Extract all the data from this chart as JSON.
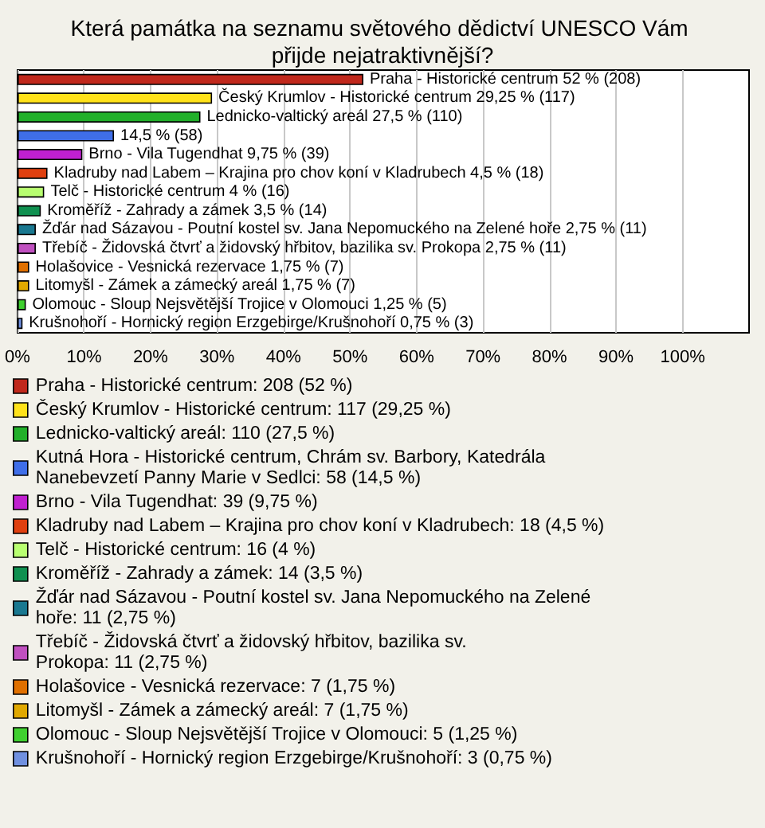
{
  "chart_data": {
    "type": "bar",
    "orientation": "horizontal",
    "title": "Která památka na seznamu světového dědictví UNESCO Vám přijde nejatraktivnější?",
    "categories": [
      null,
      null,
      null,
      null,
      null,
      null,
      null,
      null,
      null,
      null,
      null,
      null,
      null,
      null
    ],
    "series": [
      {
        "name": "Praha - Historické centrum: 208 (52 %)",
        "color": "#c0281c",
        "values": [
          52,
          null,
          null,
          null,
          null,
          null,
          null,
          null,
          null,
          null,
          null,
          null,
          null,
          null
        ],
        "value_labels": [
          "Praha - Historické centrum 52 % (208)",
          null,
          null,
          null,
          null,
          null,
          null,
          null,
          null,
          null,
          null,
          null,
          null,
          null
        ]
      },
      {
        "name": "Český Krumlov - Historické centrum: 117 (29,25 %)",
        "color": "#ffe21a",
        "values": [
          null,
          29.25,
          null,
          null,
          null,
          null,
          null,
          null,
          null,
          null,
          null,
          null,
          null,
          null
        ],
        "value_labels": [
          null,
          "Český Krumlov - Historické centrum 29,25 % (117)",
          null,
          null,
          null,
          null,
          null,
          null,
          null,
          null,
          null,
          null,
          null,
          null
        ]
      },
      {
        "name": "Lednicko-valtický areál: 110 (27,5 %)",
        "color": "#22b02a",
        "values": [
          null,
          null,
          27.5,
          null,
          null,
          null,
          null,
          null,
          null,
          null,
          null,
          null,
          null,
          null
        ],
        "value_labels": [
          null,
          null,
          "Lednicko-valtický areál 27,5 % (110)",
          null,
          null,
          null,
          null,
          null,
          null,
          null,
          null,
          null,
          null,
          null
        ]
      },
      {
        "name": "Kutná Hora - Historické centrum, Chrám sv. Barbory, Katedrála Nanebevzetí Panny Marie v Sedlci: 58 (14,5 %)",
        "color": "#3f6ee8",
        "values": [
          null,
          null,
          null,
          14.5,
          null,
          null,
          null,
          null,
          null,
          null,
          null,
          null,
          null,
          null
        ],
        "value_labels": [
          null,
          null,
          null,
          "14,5 % (58)",
          null,
          null,
          null,
          null,
          null,
          null,
          null,
          null,
          null,
          null
        ]
      },
      {
        "name": "Brno - Vila Tugendhat: 39 (9,75 %)",
        "color": "#c020d0",
        "values": [
          null,
          null,
          null,
          null,
          9.75,
          null,
          null,
          null,
          null,
          null,
          null,
          null,
          null,
          null
        ],
        "value_labels": [
          null,
          null,
          null,
          null,
          "Brno - Vila Tugendhat 9,75 % (39)",
          null,
          null,
          null,
          null,
          null,
          null,
          null,
          null,
          null
        ]
      },
      {
        "name": "Kladruby nad Labem – Krajina pro chov koní v Kladrubech: 18 (4,5 %)",
        "color": "#e04010",
        "values": [
          null,
          null,
          null,
          null,
          null,
          4.5,
          null,
          null,
          null,
          null,
          null,
          null,
          null,
          null
        ],
        "value_labels": [
          null,
          null,
          null,
          null,
          null,
          "Kladruby nad Labem – Krajina pro chov koní v Kladrubech 4,5 % (18)",
          null,
          null,
          null,
          null,
          null,
          null,
          null,
          null
        ]
      },
      {
        "name": "Telč - Historické centrum: 16 (4 %)",
        "color": "#b8ff70",
        "values": [
          null,
          null,
          null,
          null,
          null,
          null,
          4,
          null,
          null,
          null,
          null,
          null,
          null,
          null
        ],
        "value_labels": [
          null,
          null,
          null,
          null,
          null,
          null,
          "Telč - Historické centrum 4 % (16)",
          null,
          null,
          null,
          null,
          null,
          null,
          null
        ]
      },
      {
        "name": "Kroměříž - Zahrady a zámek: 14 (3,5 %)",
        "color": "#109050",
        "values": [
          null,
          null,
          null,
          null,
          null,
          null,
          null,
          3.5,
          null,
          null,
          null,
          null,
          null,
          null
        ],
        "value_labels": [
          null,
          null,
          null,
          null,
          null,
          null,
          null,
          "Kroměříž - Zahrady a zámek 3,5 % (14)",
          null,
          null,
          null,
          null,
          null,
          null
        ]
      },
      {
        "name": "Žďár nad Sázavou - Poutní kostel sv. Jana Nepomuckého na Zelené hoře: 11 (2,75 %)",
        "color": "#1a7890",
        "values": [
          null,
          null,
          null,
          null,
          null,
          null,
          null,
          null,
          2.75,
          null,
          null,
          null,
          null,
          null
        ],
        "value_labels": [
          null,
          null,
          null,
          null,
          null,
          null,
          null,
          null,
          "Žďár nad Sázavou - Poutní kostel sv. Jana Nepomuckého na Zelené hoře 2,75 % (11)",
          null,
          null,
          null,
          null,
          null
        ]
      },
      {
        "name": "Třebíč - Židovská čtvrť a židovský hřbitov, bazilika sv. Prokopa: 11 (2,75 %)",
        "color": "#c050c0",
        "values": [
          null,
          null,
          null,
          null,
          null,
          null,
          null,
          null,
          null,
          2.75,
          null,
          null,
          null,
          null
        ],
        "value_labels": [
          null,
          null,
          null,
          null,
          null,
          null,
          null,
          null,
          null,
          "Třebíč - Židovská čtvrť a židovský hřbitov, bazilika sv. Prokopa 2,75 % (11)",
          null,
          null,
          null,
          null
        ]
      },
      {
        "name": "Holašovice - Vesnická rezervace: 7 (1,75 %)",
        "color": "#e07000",
        "values": [
          null,
          null,
          null,
          null,
          null,
          null,
          null,
          null,
          null,
          null,
          1.75,
          null,
          null,
          null
        ],
        "value_labels": [
          null,
          null,
          null,
          null,
          null,
          null,
          null,
          null,
          null,
          null,
          "Holašovice - Vesnická rezervace 1,75 % (7)",
          null,
          null,
          null
        ]
      },
      {
        "name": "Litomyšl - Zámek a zámecký areál: 7 (1,75 %)",
        "color": "#e0a800",
        "values": [
          null,
          null,
          null,
          null,
          null,
          null,
          null,
          null,
          null,
          null,
          null,
          1.75,
          null,
          null
        ],
        "value_labels": [
          null,
          null,
          null,
          null,
          null,
          null,
          null,
          null,
          null,
          null,
          null,
          "Litomyšl - Zámek a zámecký areál 1,75 % (7)",
          null,
          null
        ]
      },
      {
        "name": "Olomouc - Sloup Nejsvětější Trojice v Olomouci: 5 (1,25 %)",
        "color": "#40d030",
        "values": [
          null,
          null,
          null,
          null,
          null,
          null,
          null,
          null,
          null,
          null,
          null,
          null,
          1.25,
          null
        ],
        "value_labels": [
          null,
          null,
          null,
          null,
          null,
          null,
          null,
          null,
          null,
          null,
          null,
          null,
          "Olomouc - Sloup Nejsvětější Trojice v Olomouci 1,25 % (5)",
          null
        ]
      },
      {
        "name": "Krušnohoří - Hornický region Erzgebirge/Krušnohoří: 3 (0,75 %)",
        "color": "#7090e0",
        "values": [
          null,
          null,
          null,
          null,
          null,
          null,
          null,
          null,
          null,
          null,
          null,
          null,
          null,
          0.75
        ],
        "value_labels": [
          null,
          null,
          null,
          null,
          null,
          null,
          null,
          null,
          null,
          null,
          null,
          null,
          null,
          "Krušnohoří - Hornický region Erzgebirge/Krušnohoří 0,75 % (3)"
        ]
      }
    ],
    "xlim": [
      0,
      110
    ],
    "xticks": [
      {
        "value": 0,
        "label": "0%"
      },
      {
        "value": 10,
        "label": "10%"
      },
      {
        "value": 20,
        "label": "20%"
      },
      {
        "value": 30,
        "label": "30%"
      },
      {
        "value": 40,
        "label": "40%"
      },
      {
        "value": 50,
        "label": "50%"
      },
      {
        "value": 60,
        "label": "60%"
      },
      {
        "value": 70,
        "label": "70%"
      },
      {
        "value": 80,
        "label": "80%"
      },
      {
        "value": 90,
        "label": "90%"
      },
      {
        "value": 100,
        "label": "100%"
      }
    ],
    "grid": "x",
    "legend": "bottom"
  }
}
